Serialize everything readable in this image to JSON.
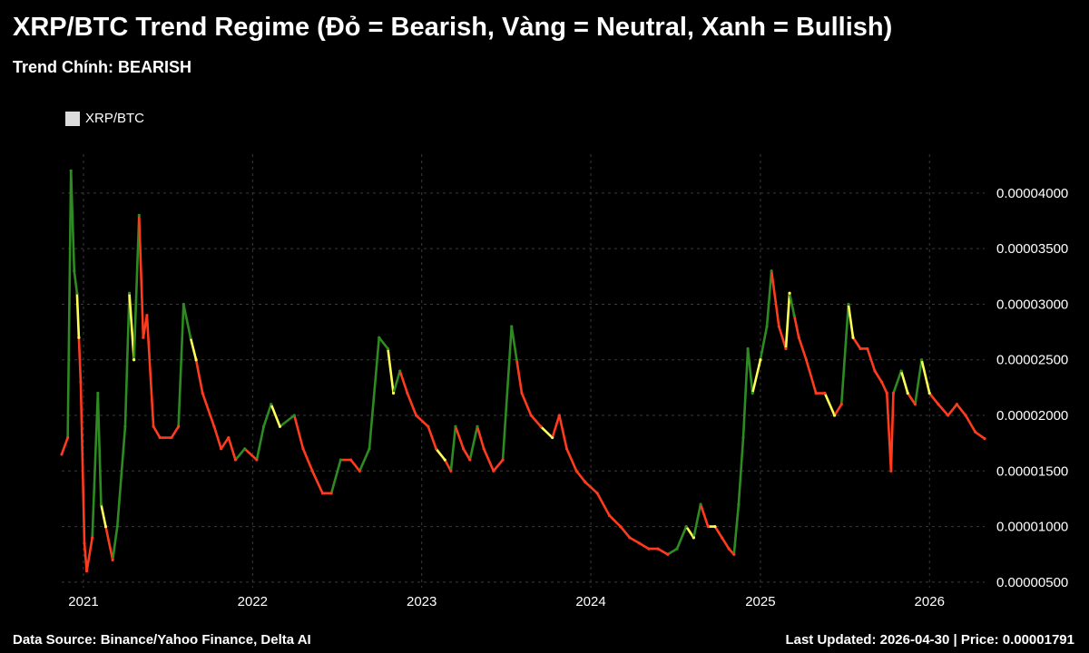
{
  "header": {
    "title": "XRP/BTC Trend Regime (Đỏ = Bearish, Vàng = Neutral, Xanh = Bullish)",
    "subtitle": "Trend Chính: BEARISH"
  },
  "footer": {
    "source": "Data Source: Binance/Yahoo Finance, Delta AI",
    "updated": "Last Updated: 2026-04-30 | Price: 0.00001791"
  },
  "colors": {
    "bearish": "#ff3b1f",
    "neutral": "#ffff55",
    "bullish": "#2e8b22",
    "legend_swatch": "#dcdcdc",
    "grid": "#3a3a3a",
    "background": "#000000"
  },
  "chart_data": {
    "type": "line",
    "legend": {
      "entries": [
        "XRP/BTC"
      ],
      "placement": "top-left"
    },
    "grid": true,
    "x_range": [
      "2020-11-15",
      "2026-04-30"
    ],
    "ylim": [
      4.5e-06,
      4.35e-05
    ],
    "x_ticks": [
      {
        "label": "2021",
        "date": "2021-01-01"
      },
      {
        "label": "2022",
        "date": "2022-01-01"
      },
      {
        "label": "2023",
        "date": "2023-01-01"
      },
      {
        "label": "2024",
        "date": "2024-01-01"
      },
      {
        "label": "2025",
        "date": "2025-01-01"
      },
      {
        "label": "2026",
        "date": "2026-01-01"
      }
    ],
    "y_ticks": [
      {
        "label": "0.00000500",
        "value": 5e-06
      },
      {
        "label": "0.00001000",
        "value": 1e-05
      },
      {
        "label": "0.00001500",
        "value": 1.5e-05
      },
      {
        "label": "0.00002000",
        "value": 2e-05
      },
      {
        "label": "0.00002500",
        "value": 2.5e-05
      },
      {
        "label": "0.00003000",
        "value": 3e-05
      },
      {
        "label": "0.00003500",
        "value": 3.5e-05
      },
      {
        "label": "0.00004000",
        "value": 4e-05
      }
    ],
    "series": [
      {
        "name": "XRP/BTC",
        "regimes": [
          "Bearish",
          "Neutral",
          "Bullish"
        ],
        "points": [
          {
            "x": "2020-11-15",
            "y": 1.65e-05,
            "regime": "bearish"
          },
          {
            "x": "2020-11-28",
            "y": 1.8e-05,
            "regime": "bearish"
          },
          {
            "x": "2020-12-05",
            "y": 4.2e-05,
            "regime": "bullish"
          },
          {
            "x": "2020-12-12",
            "y": 3.3e-05,
            "regime": "bullish"
          },
          {
            "x": "2020-12-18",
            "y": 3.1e-05,
            "regime": "bullish"
          },
          {
            "x": "2020-12-22",
            "y": 2.7e-05,
            "regime": "neutral"
          },
          {
            "x": "2020-12-26",
            "y": 2.3e-05,
            "regime": "bearish"
          },
          {
            "x": "2021-01-03",
            "y": 8.5e-06,
            "regime": "bearish"
          },
          {
            "x": "2021-01-08",
            "y": 6e-06,
            "regime": "bearish"
          },
          {
            "x": "2021-01-20",
            "y": 9e-06,
            "regime": "bearish"
          },
          {
            "x": "2021-02-01",
            "y": 2.2e-05,
            "regime": "bullish"
          },
          {
            "x": "2021-02-08",
            "y": 1.2e-05,
            "regime": "bullish"
          },
          {
            "x": "2021-02-18",
            "y": 1e-05,
            "regime": "neutral"
          },
          {
            "x": "2021-03-05",
            "y": 7e-06,
            "regime": "bearish"
          },
          {
            "x": "2021-03-15",
            "y": 1e-05,
            "regime": "bullish"
          },
          {
            "x": "2021-04-01",
            "y": 1.9e-05,
            "regime": "bullish"
          },
          {
            "x": "2021-04-10",
            "y": 3.1e-05,
            "regime": "bullish"
          },
          {
            "x": "2021-04-20",
            "y": 2.5e-05,
            "regime": "neutral"
          },
          {
            "x": "2021-05-01",
            "y": 3.8e-05,
            "regime": "bullish"
          },
          {
            "x": "2021-05-10",
            "y": 2.7e-05,
            "regime": "bearish"
          },
          {
            "x": "2021-05-18",
            "y": 2.9e-05,
            "regime": "bearish"
          },
          {
            "x": "2021-06-01",
            "y": 1.9e-05,
            "regime": "bearish"
          },
          {
            "x": "2021-06-15",
            "y": 1.8e-05,
            "regime": "bearish"
          },
          {
            "x": "2021-07-10",
            "y": 1.8e-05,
            "regime": "bearish"
          },
          {
            "x": "2021-07-25",
            "y": 1.9e-05,
            "regime": "bearish"
          },
          {
            "x": "2021-08-05",
            "y": 3e-05,
            "regime": "bullish"
          },
          {
            "x": "2021-08-20",
            "y": 2.7e-05,
            "regime": "bullish"
          },
          {
            "x": "2021-09-01",
            "y": 2.5e-05,
            "regime": "neutral"
          },
          {
            "x": "2021-09-15",
            "y": 2.2e-05,
            "regime": "bearish"
          },
          {
            "x": "2021-10-10",
            "y": 1.9e-05,
            "regime": "bearish"
          },
          {
            "x": "2021-10-25",
            "y": 1.7e-05,
            "regime": "bearish"
          },
          {
            "x": "2021-11-10",
            "y": 1.8e-05,
            "regime": "bearish"
          },
          {
            "x": "2021-11-25",
            "y": 1.6e-05,
            "regime": "bearish"
          },
          {
            "x": "2021-12-15",
            "y": 1.7e-05,
            "regime": "bullish"
          },
          {
            "x": "2022-01-10",
            "y": 1.6e-05,
            "regime": "bearish"
          },
          {
            "x": "2022-01-25",
            "y": 1.9e-05,
            "regime": "bullish"
          },
          {
            "x": "2022-02-10",
            "y": 2.1e-05,
            "regime": "bullish"
          },
          {
            "x": "2022-03-01",
            "y": 1.9e-05,
            "regime": "neutral"
          },
          {
            "x": "2022-04-01",
            "y": 2e-05,
            "regime": "bullish"
          },
          {
            "x": "2022-04-20",
            "y": 1.7e-05,
            "regime": "bearish"
          },
          {
            "x": "2022-05-10",
            "y": 1.5e-05,
            "regime": "bearish"
          },
          {
            "x": "2022-06-01",
            "y": 1.3e-05,
            "regime": "bearish"
          },
          {
            "x": "2022-06-20",
            "y": 1.3e-05,
            "regime": "bearish"
          },
          {
            "x": "2022-07-10",
            "y": 1.6e-05,
            "regime": "bullish"
          },
          {
            "x": "2022-08-01",
            "y": 1.6e-05,
            "regime": "bearish"
          },
          {
            "x": "2022-08-20",
            "y": 1.5e-05,
            "regime": "bearish"
          },
          {
            "x": "2022-09-10",
            "y": 1.7e-05,
            "regime": "bullish"
          },
          {
            "x": "2022-10-01",
            "y": 2.7e-05,
            "regime": "bullish"
          },
          {
            "x": "2022-10-20",
            "y": 2.6e-05,
            "regime": "bullish"
          },
          {
            "x": "2022-11-01",
            "y": 2.2e-05,
            "regime": "neutral"
          },
          {
            "x": "2022-11-15",
            "y": 2.4e-05,
            "regime": "bullish"
          },
          {
            "x": "2022-12-01",
            "y": 2.2e-05,
            "regime": "bearish"
          },
          {
            "x": "2022-12-20",
            "y": 2e-05,
            "regime": "bearish"
          },
          {
            "x": "2023-01-15",
            "y": 1.9e-05,
            "regime": "bearish"
          },
          {
            "x": "2023-02-01",
            "y": 1.7e-05,
            "regime": "bearish"
          },
          {
            "x": "2023-02-20",
            "y": 1.6e-05,
            "regime": "neutral"
          },
          {
            "x": "2023-03-05",
            "y": 1.5e-05,
            "regime": "bearish"
          },
          {
            "x": "2023-03-15",
            "y": 1.9e-05,
            "regime": "bullish"
          },
          {
            "x": "2023-04-01",
            "y": 1.7e-05,
            "regime": "bearish"
          },
          {
            "x": "2023-04-15",
            "y": 1.6e-05,
            "regime": "bearish"
          },
          {
            "x": "2023-05-01",
            "y": 1.9e-05,
            "regime": "bullish"
          },
          {
            "x": "2023-05-15",
            "y": 1.7e-05,
            "regime": "bearish"
          },
          {
            "x": "2023-06-05",
            "y": 1.5e-05,
            "regime": "bearish"
          },
          {
            "x": "2023-06-25",
            "y": 1.6e-05,
            "regime": "bearish"
          },
          {
            "x": "2023-07-14",
            "y": 2.8e-05,
            "regime": "bullish"
          },
          {
            "x": "2023-07-25",
            "y": 2.5e-05,
            "regime": "bullish"
          },
          {
            "x": "2023-08-05",
            "y": 2.2e-05,
            "regime": "bearish"
          },
          {
            "x": "2023-08-25",
            "y": 2e-05,
            "regime": "bearish"
          },
          {
            "x": "2023-09-15",
            "y": 1.9e-05,
            "regime": "bearish"
          },
          {
            "x": "2023-10-10",
            "y": 1.8e-05,
            "regime": "neutral"
          },
          {
            "x": "2023-10-25",
            "y": 2e-05,
            "regime": "bearish"
          },
          {
            "x": "2023-11-10",
            "y": 1.7e-05,
            "regime": "bearish"
          },
          {
            "x": "2023-12-01",
            "y": 1.5e-05,
            "regime": "bearish"
          },
          {
            "x": "2023-12-20",
            "y": 1.4e-05,
            "regime": "bearish"
          },
          {
            "x": "2024-01-15",
            "y": 1.3e-05,
            "regime": "bearish"
          },
          {
            "x": "2024-02-10",
            "y": 1.1e-05,
            "regime": "bearish"
          },
          {
            "x": "2024-03-05",
            "y": 1e-05,
            "regime": "bearish"
          },
          {
            "x": "2024-03-25",
            "y": 9e-06,
            "regime": "bearish"
          },
          {
            "x": "2024-04-15",
            "y": 8.5e-06,
            "regime": "bearish"
          },
          {
            "x": "2024-05-05",
            "y": 8e-06,
            "regime": "bearish"
          },
          {
            "x": "2024-05-25",
            "y": 8e-06,
            "regime": "bearish"
          },
          {
            "x": "2024-06-15",
            "y": 7.5e-06,
            "regime": "bearish"
          },
          {
            "x": "2024-07-05",
            "y": 8e-06,
            "regime": "bullish"
          },
          {
            "x": "2024-07-25",
            "y": 1e-05,
            "regime": "bullish"
          },
          {
            "x": "2024-08-10",
            "y": 9e-06,
            "regime": "neutral"
          },
          {
            "x": "2024-08-25",
            "y": 1.2e-05,
            "regime": "bullish"
          },
          {
            "x": "2024-09-10",
            "y": 1e-05,
            "regime": "bearish"
          },
          {
            "x": "2024-09-25",
            "y": 1e-05,
            "regime": "neutral"
          },
          {
            "x": "2024-10-10",
            "y": 9e-06,
            "regime": "bearish"
          },
          {
            "x": "2024-10-25",
            "y": 8e-06,
            "regime": "bearish"
          },
          {
            "x": "2024-11-05",
            "y": 7.5e-06,
            "regime": "bearish"
          },
          {
            "x": "2024-11-15",
            "y": 1.2e-05,
            "regime": "bullish"
          },
          {
            "x": "2024-11-25",
            "y": 1.8e-05,
            "regime": "bullish"
          },
          {
            "x": "2024-12-05",
            "y": 2.6e-05,
            "regime": "bullish"
          },
          {
            "x": "2024-12-15",
            "y": 2.2e-05,
            "regime": "bullish"
          },
          {
            "x": "2025-01-01",
            "y": 2.5e-05,
            "regime": "neutral"
          },
          {
            "x": "2025-01-15",
            "y": 2.8e-05,
            "regime": "bullish"
          },
          {
            "x": "2025-01-25",
            "y": 3.3e-05,
            "regime": "bullish"
          },
          {
            "x": "2025-02-10",
            "y": 2.8e-05,
            "regime": "bearish"
          },
          {
            "x": "2025-02-25",
            "y": 2.6e-05,
            "regime": "bearish"
          },
          {
            "x": "2025-03-05",
            "y": 3.1e-05,
            "regime": "neutral"
          },
          {
            "x": "2025-03-15",
            "y": 2.9e-05,
            "regime": "bullish"
          },
          {
            "x": "2025-03-25",
            "y": 2.7e-05,
            "regime": "bearish"
          },
          {
            "x": "2025-04-10",
            "y": 2.5e-05,
            "regime": "bearish"
          },
          {
            "x": "2025-05-01",
            "y": 2.2e-05,
            "regime": "bearish"
          },
          {
            "x": "2025-05-20",
            "y": 2.2e-05,
            "regime": "bearish"
          },
          {
            "x": "2025-06-10",
            "y": 2e-05,
            "regime": "neutral"
          },
          {
            "x": "2025-06-25",
            "y": 2.1e-05,
            "regime": "bearish"
          },
          {
            "x": "2025-07-10",
            "y": 3e-05,
            "regime": "bullish"
          },
          {
            "x": "2025-07-20",
            "y": 2.7e-05,
            "regime": "neutral"
          },
          {
            "x": "2025-08-05",
            "y": 2.6e-05,
            "regime": "bearish"
          },
          {
            "x": "2025-08-20",
            "y": 2.6e-05,
            "regime": "bearish"
          },
          {
            "x": "2025-09-05",
            "y": 2.4e-05,
            "regime": "bearish"
          },
          {
            "x": "2025-09-20",
            "y": 2.3e-05,
            "regime": "bearish"
          },
          {
            "x": "2025-10-01",
            "y": 2.2e-05,
            "regime": "bearish"
          },
          {
            "x": "2025-10-10",
            "y": 1.5e-05,
            "regime": "bearish"
          },
          {
            "x": "2025-10-15",
            "y": 2.2e-05,
            "regime": "bearish"
          },
          {
            "x": "2025-11-01",
            "y": 2.4e-05,
            "regime": "bullish"
          },
          {
            "x": "2025-11-15",
            "y": 2.2e-05,
            "regime": "neutral"
          },
          {
            "x": "2025-12-01",
            "y": 2.1e-05,
            "regime": "bearish"
          },
          {
            "x": "2025-12-15",
            "y": 2.5e-05,
            "regime": "bullish"
          },
          {
            "x": "2026-01-01",
            "y": 2.2e-05,
            "regime": "neutral"
          },
          {
            "x": "2026-01-20",
            "y": 2.1e-05,
            "regime": "bearish"
          },
          {
            "x": "2026-02-10",
            "y": 2e-05,
            "regime": "bearish"
          },
          {
            "x": "2026-03-01",
            "y": 2.1e-05,
            "regime": "bearish"
          },
          {
            "x": "2026-03-20",
            "y": 2e-05,
            "regime": "bearish"
          },
          {
            "x": "2026-04-10",
            "y": 1.85e-05,
            "regime": "bearish"
          },
          {
            "x": "2026-04-30",
            "y": 1.791e-05,
            "regime": "bearish"
          }
        ]
      }
    ]
  }
}
